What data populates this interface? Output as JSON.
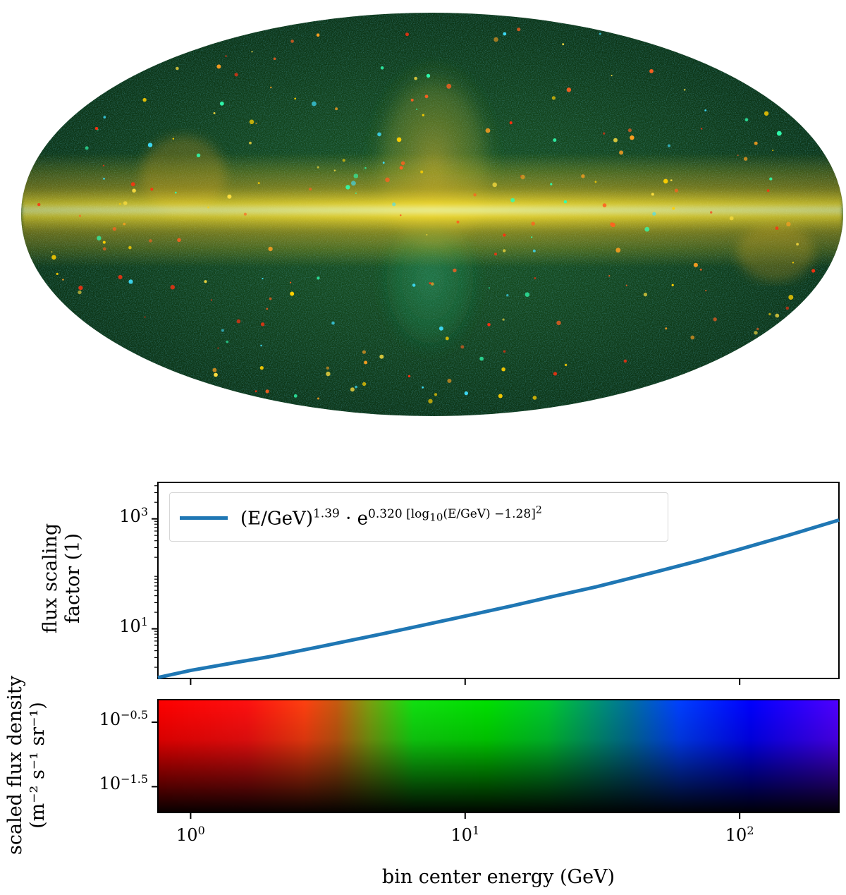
{
  "sky_map": {
    "projection": "mollweide",
    "colors": {
      "band_core": "#e8f0a0",
      "band": "#f2d22a",
      "halo": "#c8a018",
      "background": "#0a3a14",
      "low_energy": "#ff2000",
      "mid_energy": "#00ee10",
      "high_energy": "#3a00ff"
    }
  },
  "top_panel": {
    "ylabel_line1": "flux scaling",
    "ylabel_line2": "factor (1)",
    "yticks": [
      {
        "value": 10,
        "base": "10",
        "exp": "1"
      },
      {
        "value": 1000,
        "base": "10",
        "exp": "3"
      }
    ],
    "legend": {
      "prefix": "(E/GeV)",
      "exp1": "1.39",
      "mid": " · e",
      "coef": "0.320 [log",
      "sub": "10",
      "rest": "(E/GeV) −1.28]",
      "sq": "2"
    },
    "line_color": "#1f77b4"
  },
  "bottom_panel": {
    "ylabel_line1": "scaled flux density",
    "ylabel_line2": "(m⁻² s⁻¹ sr⁻¹)",
    "yticks": [
      {
        "value": -0.5,
        "base": "10",
        "exp": "−0.5"
      },
      {
        "value": -1.5,
        "base": "10",
        "exp": "−1.5"
      }
    ],
    "ylim_log10": [
      -1.9,
      -0.15
    ]
  },
  "x_axis": {
    "label": "bin center energy (GeV)",
    "ticks": [
      {
        "value": 1,
        "base": "10",
        "exp": "0"
      },
      {
        "value": 10,
        "base": "10",
        "exp": "1"
      },
      {
        "value": 100,
        "base": "10",
        "exp": "2"
      }
    ],
    "xlim": [
      0.76,
      230
    ]
  },
  "chart_data": {
    "type": "line",
    "x_scale": "log",
    "y_scale": "log",
    "xlabel": "bin center energy (GeV)",
    "ylabel": "flux scaling factor (1)",
    "xlim": [
      0.76,
      230
    ],
    "ylim": [
      1.25,
      4600
    ],
    "series": [
      {
        "name": "(E/GeV)^1.39 · e^(0.320 [log10(E/GeV) −1.28]^2)",
        "x": [
          0.76,
          1,
          1.5,
          2,
          3,
          5,
          7,
          10,
          15,
          20,
          30,
          50,
          70,
          100,
          150,
          230
        ],
        "y": [
          1.3,
          1.75,
          2.5,
          3.2,
          4.8,
          8.1,
          11.6,
          17.0,
          26.5,
          37.0,
          58.0,
          110,
          170,
          280,
          500,
          950
        ]
      }
    ],
    "gradient_strip": {
      "type": "heatmap",
      "xlabel": "bin center energy (GeV)",
      "ylabel": "scaled flux density (m⁻² s⁻¹ sr⁻¹)",
      "colors_by_energy": [
        {
          "x": 0.76,
          "color": "#ff0000"
        },
        {
          "x": 1.6,
          "color": "#ff1010"
        },
        {
          "x": 2.6,
          "color": "#ff4010"
        },
        {
          "x": 3.4,
          "color": "#c85a10"
        },
        {
          "x": 4.5,
          "color": "#7aa010"
        },
        {
          "x": 6.5,
          "color": "#10e010"
        },
        {
          "x": 12,
          "color": "#00e000"
        },
        {
          "x": 20,
          "color": "#00c830"
        },
        {
          "x": 40,
          "color": "#0070a0"
        },
        {
          "x": 60,
          "color": "#0040ff"
        },
        {
          "x": 110,
          "color": "#0000ff"
        },
        {
          "x": 230,
          "color": "#5000ff"
        }
      ]
    }
  }
}
